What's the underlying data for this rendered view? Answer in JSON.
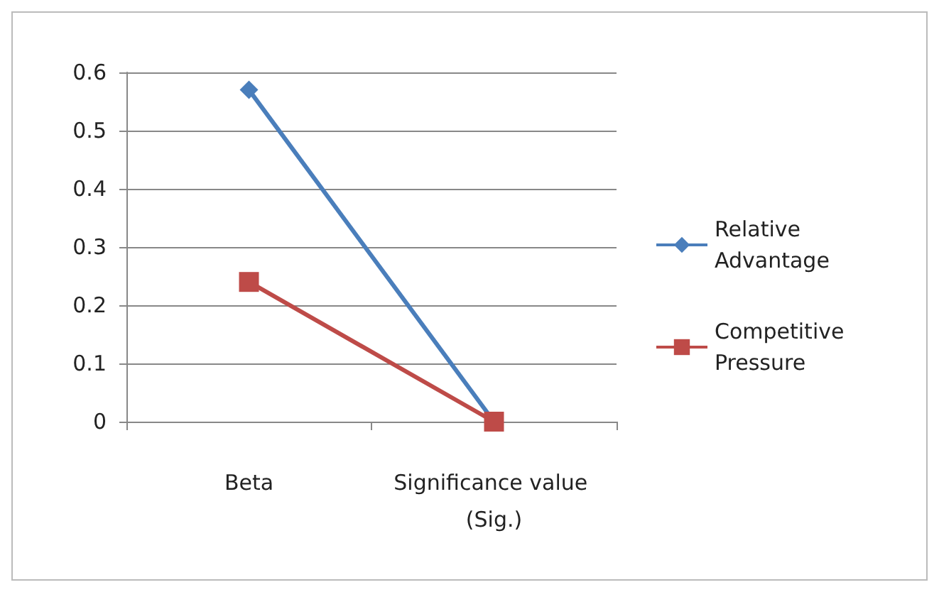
{
  "chart_data": {
    "type": "line",
    "categories": [
      "Beta",
      "Significance value (Sig.)"
    ],
    "series": [
      {
        "name": "Relative Advantage",
        "color": "#4a7ebb",
        "marker": "diamond",
        "values": [
          0.57,
          0
        ]
      },
      {
        "name": "Competitive Pressure",
        "color": "#be4b48",
        "marker": "square",
        "values": [
          0.24,
          0
        ]
      }
    ],
    "ylim": [
      0,
      0.6
    ],
    "yticks": [
      0,
      0.1,
      0.2,
      0.3,
      0.4,
      0.5,
      0.6
    ],
    "grid": "y",
    "legend": "right"
  }
}
